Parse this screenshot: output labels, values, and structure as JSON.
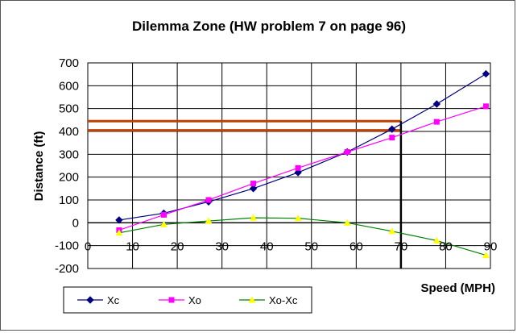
{
  "chart_data": {
    "type": "line",
    "title": "Dilemma Zone (HW problem 7 on page 96)",
    "xlabel": "Speed (MPH)",
    "ylabel": "Distance (ft)",
    "xlim": [
      0,
      90
    ],
    "ylim": [
      -200,
      700
    ],
    "x_ticks": [
      "0",
      "10",
      "20",
      "30",
      "40",
      "50",
      "60",
      "70",
      "80",
      "90"
    ],
    "y_ticks": [
      "700",
      "600",
      "500",
      "400",
      "300",
      "200",
      "100",
      "0",
      "-100",
      "-200"
    ],
    "grid": true,
    "legend_position": "bottom-left",
    "x": [
      7,
      17,
      27,
      37,
      47,
      58,
      68,
      78,
      89
    ],
    "series": [
      {
        "name": "Xc",
        "color": "#000080",
        "marker": "diamond",
        "values": [
          12,
          42,
          92,
          150,
          220,
          310,
          410,
          520,
          652
        ]
      },
      {
        "name": "Xo",
        "color": "#ff00ff",
        "marker": "square",
        "values": [
          -32,
          35,
          100,
          172,
          240,
          310,
          373,
          442,
          510
        ]
      },
      {
        "name": "Xo-Xc",
        "color": "#ffff00",
        "line_color": "#008000",
        "marker": "triangle",
        "values": [
          -44,
          -7,
          8,
          22,
          20,
          0,
          -37,
          -78,
          -142
        ]
      }
    ],
    "annotations": {
      "horizontal_lines": {
        "color": "#c04000",
        "values": [
          445,
          405
        ],
        "x_range": [
          0,
          70
        ]
      },
      "vertical_line": {
        "color": "#000000",
        "x": 70,
        "y_range": [
          -200,
          445
        ]
      }
    }
  }
}
